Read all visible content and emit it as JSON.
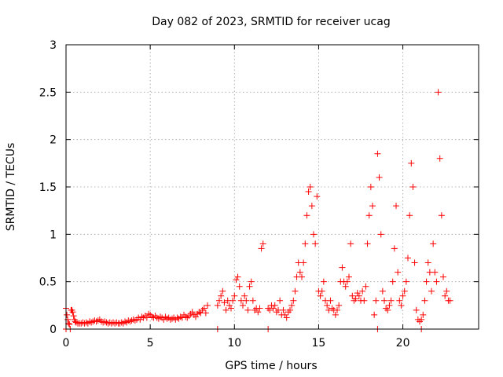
{
  "chart_data": {
    "type": "scatter",
    "title": "Day 082 of 2023, SRMTID for receiver ucag",
    "xlabel": "GPS time / hours",
    "ylabel": "SRMTID / TECUs",
    "xlim": [
      0,
      24.5
    ],
    "ylim": [
      0,
      3
    ],
    "xticks": [
      0,
      5,
      10,
      15,
      20
    ],
    "xtick_labels": [
      "0",
      "5",
      "10",
      "15",
      "20"
    ],
    "yticks": [
      0,
      0.5,
      1,
      1.5,
      2,
      2.5,
      3
    ],
    "ytick_labels": [
      "0",
      "0.5",
      "1",
      "1.5",
      "2",
      "2.5",
      "3"
    ],
    "grid": true,
    "legend": "none",
    "marker": "plus",
    "color": "#ff0000",
    "series": [
      {
        "x": [
          0.0,
          0.05,
          0.1,
          0.15,
          0.2,
          0.3,
          0.35,
          0.4,
          0.45,
          0.5,
          0.55,
          0.6,
          0.7,
          0.8,
          0.9,
          1.0,
          1.1,
          1.2,
          1.3,
          1.4,
          1.5,
          1.6,
          1.7,
          1.8,
          1.9,
          2.0,
          2.1,
          2.2,
          2.3,
          2.4,
          2.5,
          2.6,
          2.7,
          2.8,
          2.9,
          3.0,
          3.1,
          3.2,
          3.3,
          3.4,
          3.5,
          3.6,
          3.7,
          3.8,
          3.9,
          4.0,
          4.1,
          4.2,
          4.3,
          4.4,
          4.5,
          4.6,
          4.7,
          4.8,
          4.9,
          5.0,
          5.1,
          5.2,
          5.3,
          5.4,
          5.5,
          5.6,
          5.7,
          5.8,
          5.9,
          6.0,
          6.1,
          6.2,
          6.3,
          6.4,
          6.5,
          6.6,
          6.7,
          6.8,
          6.9,
          7.0,
          7.1,
          7.2,
          7.3,
          7.4,
          7.5,
          7.6,
          7.7,
          7.8,
          7.9,
          8.0,
          8.1,
          8.2,
          8.3,
          8.4,
          9.0,
          9.1,
          9.2,
          9.3,
          9.4,
          9.5,
          9.6,
          9.7,
          9.8,
          9.9,
          10.0,
          10.1,
          10.2,
          10.3,
          10.4,
          10.5,
          10.6,
          10.7,
          10.8,
          10.9,
          11.0,
          11.1,
          11.2,
          11.3,
          11.4,
          11.5,
          11.6,
          11.7,
          12.0,
          12.1,
          12.2,
          12.3,
          12.4,
          12.5,
          12.6,
          12.7,
          12.8,
          12.9,
          13.0,
          13.1,
          13.2,
          13.3,
          13.4,
          13.5,
          13.6,
          13.7,
          13.8,
          13.9,
          14.0,
          14.1,
          14.2,
          14.3,
          14.4,
          14.5,
          14.6,
          14.7,
          14.8,
          14.9,
          15.0,
          15.1,
          15.2,
          15.3,
          15.4,
          15.5,
          15.6,
          15.7,
          15.8,
          15.9,
          16.0,
          16.1,
          16.2,
          16.3,
          16.4,
          16.5,
          16.6,
          16.7,
          16.8,
          16.9,
          17.0,
          17.1,
          17.2,
          17.3,
          17.4,
          17.5,
          17.6,
          17.7,
          17.8,
          17.9,
          18.0,
          18.1,
          18.2,
          18.3,
          18.4,
          18.5,
          18.6,
          18.7,
          18.8,
          18.9,
          19.0,
          19.1,
          19.2,
          19.3,
          19.4,
          19.5,
          19.6,
          19.7,
          19.8,
          19.9,
          20.0,
          20.1,
          20.2,
          20.3,
          20.4,
          20.5,
          20.6,
          20.7,
          20.8,
          20.9,
          21.0,
          21.1,
          21.2,
          21.3,
          21.4,
          21.5,
          21.6,
          21.7,
          21.8,
          21.9,
          22.0,
          22.1,
          22.2,
          22.3,
          22.4,
          22.5,
          22.6,
          22.7,
          22.8,
          0.0,
          0.25,
          9.0,
          12.0,
          18.5,
          21.1
        ],
        "values": [
          0.22,
          0.15,
          0.1,
          0.06,
          0.05,
          0.2,
          0.2,
          0.18,
          0.14,
          0.1,
          0.08,
          0.07,
          0.06,
          0.06,
          0.06,
          0.07,
          0.06,
          0.07,
          0.06,
          0.08,
          0.07,
          0.08,
          0.09,
          0.08,
          0.09,
          0.1,
          0.08,
          0.07,
          0.08,
          0.07,
          0.06,
          0.07,
          0.06,
          0.07,
          0.06,
          0.07,
          0.06,
          0.06,
          0.07,
          0.06,
          0.08,
          0.07,
          0.09,
          0.08,
          0.09,
          0.1,
          0.09,
          0.1,
          0.12,
          0.1,
          0.13,
          0.12,
          0.14,
          0.12,
          0.16,
          0.15,
          0.13,
          0.12,
          0.14,
          0.12,
          0.11,
          0.13,
          0.12,
          0.1,
          0.13,
          0.11,
          0.12,
          0.1,
          0.11,
          0.12,
          0.1,
          0.12,
          0.11,
          0.13,
          0.12,
          0.15,
          0.13,
          0.12,
          0.14,
          0.16,
          0.18,
          0.15,
          0.13,
          0.16,
          0.18,
          0.17,
          0.2,
          0.22,
          0.17,
          0.25,
          0.25,
          0.3,
          0.35,
          0.4,
          0.28,
          0.2,
          0.3,
          0.25,
          0.22,
          0.3,
          0.35,
          0.52,
          0.55,
          0.45,
          0.3,
          0.25,
          0.35,
          0.3,
          0.2,
          0.45,
          0.5,
          0.3,
          0.2,
          0.22,
          0.18,
          0.22,
          0.85,
          0.9,
          0.22,
          0.2,
          0.25,
          0.22,
          0.25,
          0.18,
          0.2,
          0.3,
          0.15,
          0.2,
          0.15,
          0.12,
          0.18,
          0.2,
          0.25,
          0.3,
          0.4,
          0.55,
          0.7,
          0.6,
          0.55,
          0.7,
          0.9,
          1.2,
          1.45,
          1.5,
          1.3,
          1.0,
          0.9,
          1.4,
          0.4,
          0.35,
          0.4,
          0.5,
          0.3,
          0.25,
          0.2,
          0.3,
          0.22,
          0.2,
          0.15,
          0.2,
          0.25,
          0.5,
          0.65,
          0.5,
          0.45,
          0.5,
          0.55,
          0.9,
          0.35,
          0.3,
          0.32,
          0.38,
          0.35,
          0.3,
          0.4,
          0.3,
          0.45,
          0.9,
          1.2,
          1.5,
          1.3,
          0.15,
          0.3,
          1.85,
          1.6,
          1.0,
          0.4,
          0.3,
          0.22,
          0.2,
          0.25,
          0.3,
          0.5,
          0.85,
          1.3,
          0.6,
          0.3,
          0.25,
          0.35,
          0.4,
          0.5,
          0.75,
          1.2,
          1.75,
          1.5,
          0.7,
          0.2,
          0.1,
          0.08,
          0.1,
          0.15,
          0.3,
          0.5,
          0.7,
          0.6,
          0.4,
          0.9,
          0.6,
          0.5,
          2.5,
          1.8,
          1.2,
          0.55,
          0.35,
          0.4,
          0.3,
          0.3,
          0.0,
          0.0,
          0.0,
          0.0,
          0.0,
          0.0
        ]
      }
    ]
  }
}
